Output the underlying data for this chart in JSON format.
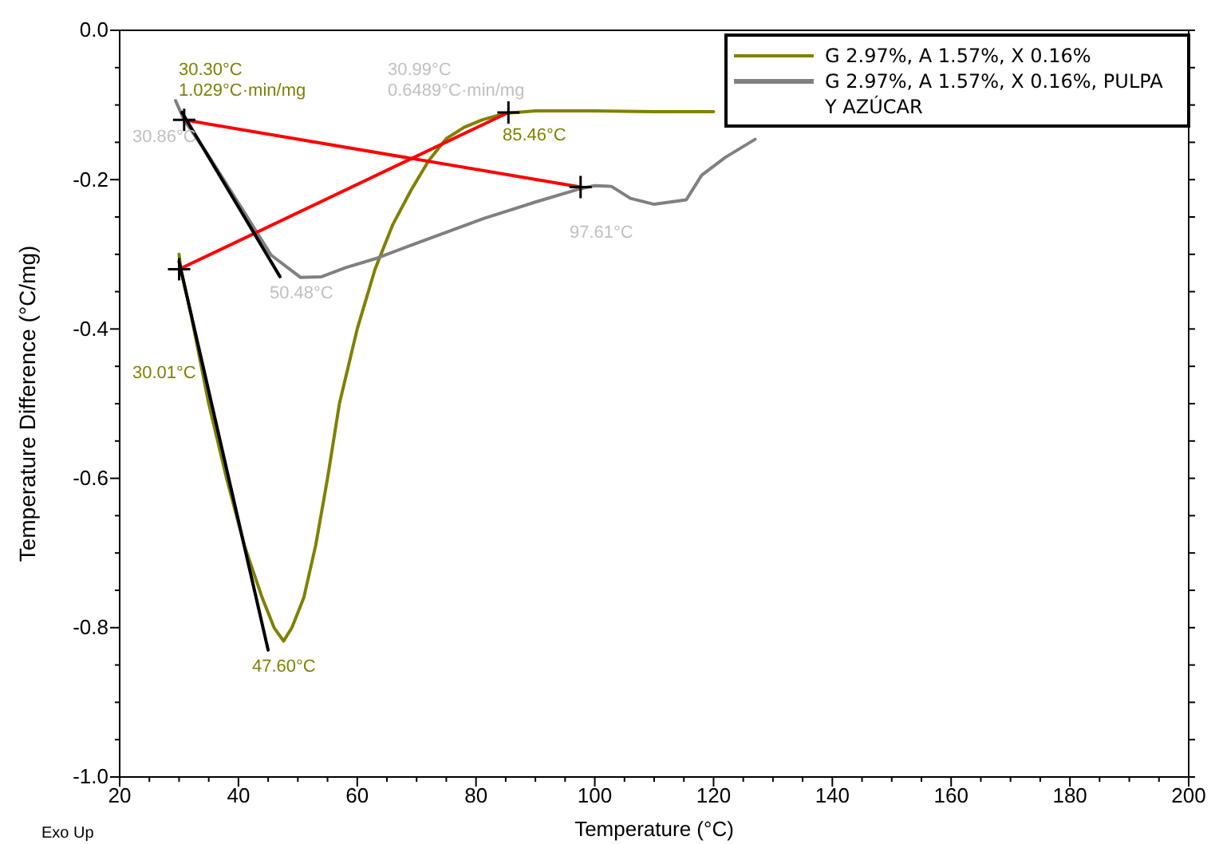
{
  "chart_data": {
    "type": "line",
    "xlabel": "Temperature (°C)",
    "ylabel": "Temperature Difference (°C/mg)",
    "xlim": [
      20,
      200
    ],
    "ylim": [
      -1.0,
      0.0
    ],
    "xticks": [
      20,
      {
        "value": 25,
        "label": null
      },
      {
        "value": 30,
        "label": null
      },
      {
        "value": 35,
        "label": null
      },
      40,
      {
        "value": 45,
        "label": null
      },
      {
        "value": 50,
        "label": null
      },
      {
        "value": 55,
        "label": null
      },
      60,
      {
        "value": 65,
        "label": null
      },
      {
        "value": 70,
        "label": null
      },
      {
        "value": 75,
        "label": null
      },
      80,
      {
        "value": 85,
        "label": null
      },
      {
        "value": 90,
        "label": null
      },
      {
        "value": 95,
        "label": null
      },
      100,
      {
        "value": 105,
        "label": null
      },
      {
        "value": 110,
        "label": null
      },
      {
        "value": 115,
        "label": null
      },
      120,
      {
        "value": 125,
        "label": null
      },
      {
        "value": 130,
        "label": null
      },
      {
        "value": 135,
        "label": null
      },
      140,
      {
        "value": 145,
        "label": null
      },
      {
        "value": 150,
        "label": null
      },
      {
        "value": 155,
        "label": null
      },
      160,
      {
        "value": 165,
        "label": null
      },
      {
        "value": 170,
        "label": null
      },
      {
        "value": 175,
        "label": null
      },
      180,
      {
        "value": 185,
        "label": null
      },
      {
        "value": 190,
        "label": null
      },
      {
        "value": 195,
        "label": null
      },
      200
    ],
    "yticks": [
      {
        "value": -1.0,
        "label": "-1.0"
      },
      {
        "value": -0.95,
        "label": null
      },
      {
        "value": -0.9,
        "label": null
      },
      {
        "value": -0.85,
        "label": null
      },
      -0.8,
      {
        "value": -0.75,
        "label": null
      },
      {
        "value": -0.7,
        "label": null
      },
      {
        "value": -0.65,
        "label": null
      },
      -0.6,
      {
        "value": -0.55,
        "label": null
      },
      {
        "value": -0.5,
        "label": null
      },
      {
        "value": -0.45,
        "label": null
      },
      -0.4,
      {
        "value": -0.35,
        "label": null
      },
      {
        "value": -0.3,
        "label": null
      },
      {
        "value": -0.25,
        "label": null
      },
      -0.2,
      {
        "value": -0.15,
        "label": null
      },
      {
        "value": -0.1,
        "label": null
      },
      {
        "value": -0.05,
        "label": null
      },
      {
        "value": 0.0,
        "label": "0.0"
      }
    ],
    "grid": false,
    "legend": "top right",
    "line_style": "solid",
    "series": [
      {
        "name": "G 2.97%, A 1.57%, X 0.16%",
        "color": "#808000",
        "x": [
          30.0,
          30.3,
          32,
          35,
          38,
          41,
          44,
          46,
          47.6,
          49,
          51,
          53,
          55,
          57,
          60,
          63,
          66,
          69,
          72,
          75,
          78,
          81,
          85,
          90,
          100,
          110,
          120
        ],
        "values": [
          -0.3,
          -0.32,
          -0.38,
          -0.5,
          -0.6,
          -0.69,
          -0.76,
          -0.8,
          -0.818,
          -0.8,
          -0.76,
          -0.69,
          -0.6,
          -0.5,
          -0.4,
          -0.32,
          -0.26,
          -0.215,
          -0.175,
          -0.145,
          -0.13,
          -0.12,
          -0.111,
          -0.108,
          -0.108,
          -0.109,
          -0.109
        ]
      },
      {
        "name": "G 2.97%, A 1.57%, X 0.16%, PULPA Y AZÚCAR",
        "color": "#808080",
        "x": [
          29.4,
          30.86,
          34.8,
          41,
          45.5,
          50.48,
          54,
          58,
          63.4,
          70,
          81.3,
          90,
          97.61,
          100,
          102.8,
          106,
          110,
          115.4,
          118,
          122,
          127
        ],
        "values": [
          -0.094,
          -0.12,
          -0.166,
          -0.244,
          -0.301,
          -0.331,
          -0.33,
          -0.318,
          -0.305,
          -0.285,
          -0.252,
          -0.23,
          -0.212,
          -0.208,
          -0.209,
          -0.225,
          -0.233,
          -0.227,
          -0.194,
          -0.17,
          -0.146
        ]
      },
      {
        "color": "#ff0000",
        "marker": "cross",
        "x": [
          30.01,
          85.46
        ],
        "values": [
          -0.32,
          -0.11
        ]
      },
      {
        "color": "#ff0000",
        "marker": "cross",
        "x": [
          30.86,
          97.61
        ],
        "values": [
          -0.12,
          -0.21
        ]
      },
      {
        "color": "#000000",
        "x": [
          30.0,
          45.0
        ],
        "values": [
          -0.31,
          -0.83
        ]
      },
      {
        "color": "#000000",
        "x": [
          30.5,
          47.0
        ],
        "values": [
          -0.11,
          -0.33
        ]
      }
    ],
    "annotations": [
      "30.30°C\n1.029°C·min/mg",
      "30.99°C\n0.6489°C·min/mg",
      "30.86°C",
      "85.46°C",
      "97.61°C",
      "50.48°C",
      "30.01°C",
      "47.60°C",
      "Exo Up"
    ]
  }
}
